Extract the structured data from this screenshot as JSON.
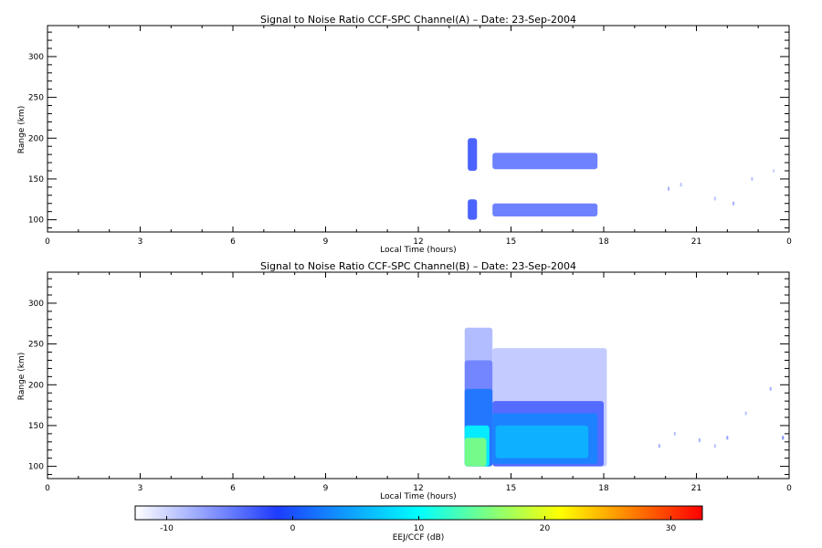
{
  "chart_data": [
    {
      "type": "heatmap",
      "title": "Signal to Noise Ratio CCF-SPC Channel(A) – Date: 23-Sep-2004",
      "xlabel": "Local Time (hours)",
      "ylabel": "Range (km)",
      "xlim": [
        0,
        24
      ],
      "ylim": [
        85,
        338
      ],
      "x_ticks": [
        "0",
        "3",
        "6",
        "9",
        "12",
        "15",
        "18",
        "21",
        "0"
      ],
      "y_ticks": [
        100,
        150,
        200,
        250,
        300
      ],
      "regions": [
        {
          "t_start": 13.6,
          "t_end": 13.9,
          "range_low": 160,
          "range_high": 200,
          "snr_db": -2
        },
        {
          "t_start": 14.4,
          "t_end": 17.8,
          "range_low": 162,
          "range_high": 182,
          "snr_db": -4
        },
        {
          "t_start": 13.6,
          "t_end": 13.9,
          "range_low": 100,
          "range_high": 125,
          "snr_db": -2
        },
        {
          "t_start": 14.4,
          "t_end": 17.8,
          "range_low": 104,
          "range_high": 120,
          "snr_db": -4
        }
      ],
      "scatter": [
        {
          "t": 20.1,
          "range": 138,
          "snr_db": -8
        },
        {
          "t": 20.5,
          "range": 143,
          "snr_db": -9
        },
        {
          "t": 21.6,
          "range": 126,
          "snr_db": -9
        },
        {
          "t": 22.2,
          "range": 120,
          "snr_db": -8
        },
        {
          "t": 22.8,
          "range": 150,
          "snr_db": -9
        },
        {
          "t": 23.5,
          "range": 160,
          "snr_db": -10
        }
      ]
    },
    {
      "type": "heatmap",
      "title": "Signal to Noise Ratio CCF-SPC Channel(B) – Date: 23-Sep-2004",
      "xlabel": "Local Time (hours)",
      "ylabel": "Range (km)",
      "xlim": [
        0,
        24
      ],
      "ylim": [
        85,
        338
      ],
      "x_ticks": [
        "0",
        "3",
        "6",
        "9",
        "12",
        "15",
        "18",
        "21",
        "0"
      ],
      "y_ticks": [
        100,
        150,
        200,
        250,
        300
      ],
      "regions": [
        {
          "t_start": 13.5,
          "t_end": 14.4,
          "range_low": 100,
          "range_high": 270,
          "snr_db": -8
        },
        {
          "t_start": 14.4,
          "t_end": 18.1,
          "range_low": 100,
          "range_high": 245,
          "snr_db": -9
        },
        {
          "t_start": 13.5,
          "t_end": 14.4,
          "range_low": 100,
          "range_high": 230,
          "snr_db": -5
        },
        {
          "t_start": 14.4,
          "t_end": 18.0,
          "range_low": 100,
          "range_high": 180,
          "snr_db": -3
        },
        {
          "t_start": 13.5,
          "t_end": 14.4,
          "range_low": 100,
          "range_high": 195,
          "snr_db": 2
        },
        {
          "t_start": 14.4,
          "t_end": 17.8,
          "range_low": 103,
          "range_high": 165,
          "snr_db": 3
        },
        {
          "t_start": 13.5,
          "t_end": 14.3,
          "range_low": 100,
          "range_high": 150,
          "snr_db": 10
        },
        {
          "t_start": 14.5,
          "t_end": 17.5,
          "range_low": 110,
          "range_high": 150,
          "snr_db": 6
        },
        {
          "t_start": 13.5,
          "t_end": 14.2,
          "range_low": 100,
          "range_high": 135,
          "snr_db": 16
        }
      ],
      "scatter": [
        {
          "t": 19.8,
          "range": 125,
          "snr_db": -8
        },
        {
          "t": 20.3,
          "range": 140,
          "snr_db": -9
        },
        {
          "t": 21.1,
          "range": 132,
          "snr_db": -8
        },
        {
          "t": 21.6,
          "range": 125,
          "snr_db": -9
        },
        {
          "t": 22.0,
          "range": 135,
          "snr_db": -7
        },
        {
          "t": 22.6,
          "range": 165,
          "snr_db": -9
        },
        {
          "t": 23.4,
          "range": 195,
          "snr_db": -8
        },
        {
          "t": 23.8,
          "range": 135,
          "snr_db": -6
        }
      ]
    }
  ],
  "colorbar": {
    "label": "EEJ/CCF (dB)",
    "min": -12.5,
    "max": 32.5,
    "ticks": [
      -10,
      0,
      10,
      20,
      30
    ],
    "tick_labels": [
      "-10",
      "0",
      "10",
      "20",
      "30"
    ],
    "colors": [
      "#ffffff",
      "#1e3cff",
      "#00ffff",
      "#ffff00",
      "#ff0000"
    ]
  }
}
